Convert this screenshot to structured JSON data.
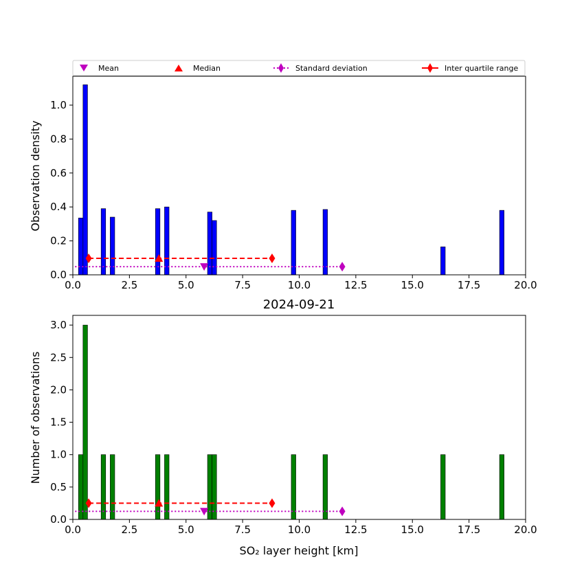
{
  "legend": {
    "items": [
      {
        "label": "Mean",
        "marker": "triangle-down",
        "color": "#bf00bf"
      },
      {
        "label": "Median",
        "marker": "triangle-up",
        "color": "#ff0000"
      },
      {
        "label": "Standard deviation",
        "marker": "diamond-dotted",
        "color": "#bf00bf"
      },
      {
        "label": "Inter quartile range",
        "marker": "diamond-line",
        "color": "#ff0000"
      }
    ]
  },
  "chart_data": [
    {
      "type": "bar",
      "title": "",
      "xlabel": "",
      "ylabel": "Observation density",
      "xlim": [
        0,
        20
      ],
      "ylim": [
        0,
        1.17
      ],
      "xticks": [
        "0.0",
        "2.5",
        "5.0",
        "7.5",
        "10.0",
        "12.5",
        "15.0",
        "17.5",
        "20.0"
      ],
      "yticks": [
        "0.0",
        "0.2",
        "0.4",
        "0.6",
        "0.8",
        "1.0"
      ],
      "bar_color": "#0000ff",
      "bars": [
        {
          "x": 0.35,
          "value": 0.335
        },
        {
          "x": 0.55,
          "value": 1.12
        },
        {
          "x": 1.35,
          "value": 0.39
        },
        {
          "x": 1.75,
          "value": 0.34
        },
        {
          "x": 3.75,
          "value": 0.39
        },
        {
          "x": 4.15,
          "value": 0.4
        },
        {
          "x": 6.05,
          "value": 0.37
        },
        {
          "x": 6.25,
          "value": 0.32
        },
        {
          "x": 9.75,
          "value": 0.38
        },
        {
          "x": 11.15,
          "value": 0.385
        },
        {
          "x": 16.35,
          "value": 0.165
        },
        {
          "x": 18.95,
          "value": 0.38
        }
      ],
      "mean": {
        "x": 5.8,
        "y": 0.048
      },
      "median": {
        "x": 3.8,
        "y": 0.097
      },
      "std_dev": {
        "x_start": 0.1,
        "x_end": 11.9,
        "y": 0.048
      },
      "iqr": {
        "x_start": 0.7,
        "x_end": 8.8,
        "y": 0.097
      }
    },
    {
      "type": "bar",
      "title": "2024-09-21",
      "xlabel": "SO₂ layer height [km]",
      "ylabel": "Number of observations",
      "xlim": [
        0,
        20
      ],
      "ylim": [
        0,
        3.15
      ],
      "xticks": [
        "0.0",
        "2.5",
        "5.0",
        "7.5",
        "10.0",
        "12.5",
        "15.0",
        "17.5",
        "20.0"
      ],
      "yticks": [
        "0.0",
        "0.5",
        "1.0",
        "1.5",
        "2.0",
        "2.5",
        "3.0"
      ],
      "bar_color": "#008000",
      "bars": [
        {
          "x": 0.35,
          "value": 1
        },
        {
          "x": 0.55,
          "value": 3
        },
        {
          "x": 1.35,
          "value": 1
        },
        {
          "x": 1.75,
          "value": 1
        },
        {
          "x": 3.75,
          "value": 1
        },
        {
          "x": 4.15,
          "value": 1
        },
        {
          "x": 6.05,
          "value": 1
        },
        {
          "x": 6.25,
          "value": 1
        },
        {
          "x": 9.75,
          "value": 1
        },
        {
          "x": 11.15,
          "value": 1
        },
        {
          "x": 16.35,
          "value": 1
        },
        {
          "x": 18.95,
          "value": 1
        }
      ],
      "mean": {
        "x": 5.8,
        "y": 0.125
      },
      "median": {
        "x": 3.8,
        "y": 0.25
      },
      "std_dev": {
        "x_start": 0.1,
        "x_end": 11.9,
        "y": 0.125
      },
      "iqr": {
        "x_start": 0.7,
        "x_end": 8.8,
        "y": 0.25
      }
    }
  ]
}
